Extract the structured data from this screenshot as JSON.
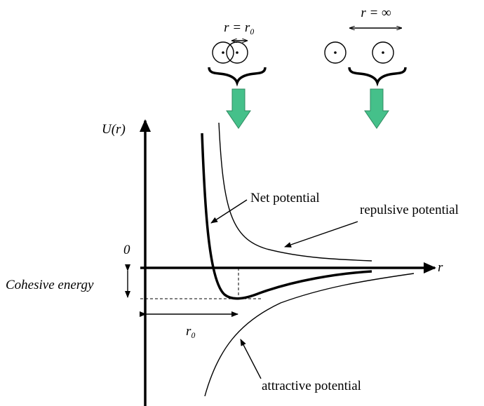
{
  "top": {
    "close_label": "r = r₀",
    "far_label": "r = ∞"
  },
  "axes": {
    "y_label": "U(r)",
    "x_label": "r",
    "zero_label": "0"
  },
  "labels": {
    "cohesive_energy": "Cohesive energy",
    "r0": "r₀",
    "net_potential": "Net potential",
    "repulsive_potential": "repulsive potential",
    "attractive_potential": "attractive potential"
  }
}
